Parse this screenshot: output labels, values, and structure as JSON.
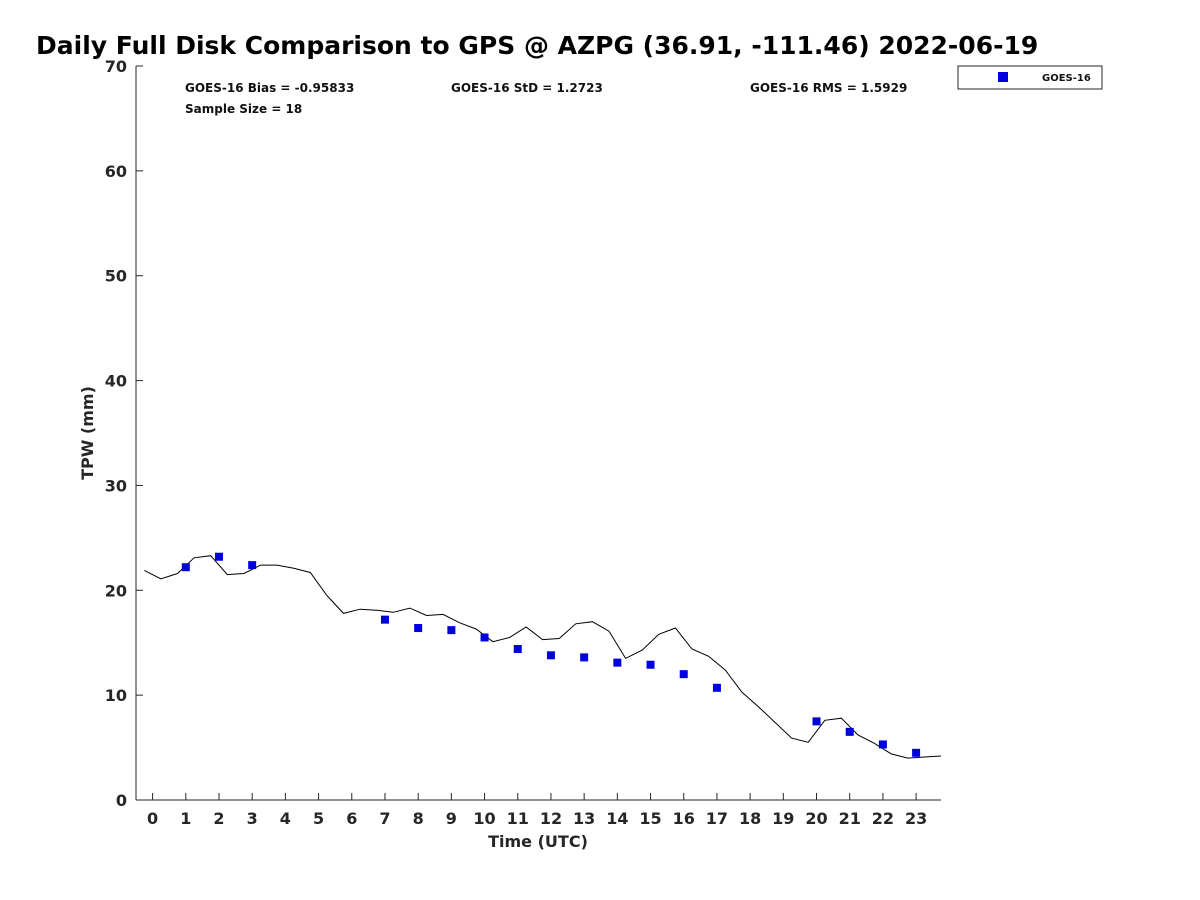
{
  "chart_data": {
    "type": "scatter",
    "title": "Daily Full Disk Comparison to GPS @ AZPG (36.91, -111.46) 2022-06-19",
    "xlabel": "Time (UTC)",
    "ylabel": "TPW (mm)",
    "xlim": [
      -0.5,
      23.75
    ],
    "ylim": [
      0,
      70
    ],
    "x_ticks": [
      0,
      1,
      2,
      3,
      4,
      5,
      6,
      7,
      8,
      9,
      10,
      11,
      12,
      13,
      14,
      15,
      16,
      17,
      18,
      19,
      20,
      21,
      22,
      23
    ],
    "y_ticks": [
      0,
      10,
      20,
      30,
      40,
      50,
      60,
      70
    ],
    "legend_position": "top-right",
    "stats": [
      {
        "text": "GOES-16 Bias = -0.95833"
      },
      {
        "text": "GOES-16 StD = 1.2723"
      },
      {
        "text": "GOES-16 RMS = 1.5929"
      },
      {
        "text": "Sample Size = 18"
      }
    ],
    "series": [
      {
        "name": "GOES-16",
        "kind": "scatter",
        "marker": "square",
        "color": "#0000dd",
        "points": [
          [
            1,
            22.2
          ],
          [
            2,
            23.2
          ],
          [
            3,
            22.4
          ],
          [
            7,
            17.2
          ],
          [
            8,
            16.4
          ],
          [
            9,
            16.2
          ],
          [
            10,
            15.5
          ],
          [
            11,
            14.4
          ],
          [
            12,
            13.8
          ],
          [
            13,
            13.6
          ],
          [
            14,
            13.1
          ],
          [
            15,
            12.9
          ],
          [
            16,
            12.0
          ],
          [
            17,
            10.7
          ],
          [
            20,
            7.5
          ],
          [
            21,
            6.5
          ],
          [
            22,
            5.3
          ],
          [
            23,
            4.5
          ]
        ]
      },
      {
        "name": "GPS",
        "kind": "line",
        "color": "#000000",
        "points": [
          [
            -0.25,
            21.9
          ],
          [
            0.25,
            21.1
          ],
          [
            0.75,
            21.6
          ],
          [
            1.25,
            23.1
          ],
          [
            1.75,
            23.3
          ],
          [
            2.25,
            21.5
          ],
          [
            2.75,
            21.6
          ],
          [
            3.25,
            22.4
          ],
          [
            3.75,
            22.4
          ],
          [
            4.25,
            22.1
          ],
          [
            4.75,
            21.7
          ],
          [
            5.25,
            19.5
          ],
          [
            5.75,
            17.8
          ],
          [
            6.25,
            18.2
          ],
          [
            6.75,
            18.1
          ],
          [
            7.25,
            17.9
          ],
          [
            7.75,
            18.3
          ],
          [
            8.25,
            17.6
          ],
          [
            8.75,
            17.7
          ],
          [
            9.25,
            16.9
          ],
          [
            9.75,
            16.3
          ],
          [
            10.25,
            15.1
          ],
          [
            10.75,
            15.5
          ],
          [
            11.25,
            16.5
          ],
          [
            11.75,
            15.3
          ],
          [
            12.25,
            15.4
          ],
          [
            12.75,
            16.8
          ],
          [
            13.25,
            17.0
          ],
          [
            13.75,
            16.1
          ],
          [
            14.25,
            13.5
          ],
          [
            14.75,
            14.3
          ],
          [
            15.25,
            15.8
          ],
          [
            15.75,
            16.4
          ],
          [
            16.25,
            14.4
          ],
          [
            16.75,
            13.7
          ],
          [
            17.25,
            12.4
          ],
          [
            17.75,
            10.3
          ],
          [
            18.25,
            8.9
          ],
          [
            18.75,
            7.4
          ],
          [
            19.25,
            5.9
          ],
          [
            19.75,
            5.5
          ],
          [
            20.25,
            7.6
          ],
          [
            20.75,
            7.8
          ],
          [
            21.25,
            6.2
          ],
          [
            21.75,
            5.4
          ],
          [
            22.25,
            4.4
          ],
          [
            22.75,
            4.0
          ],
          [
            23.25,
            4.1
          ],
          [
            23.75,
            4.2
          ]
        ]
      }
    ]
  }
}
